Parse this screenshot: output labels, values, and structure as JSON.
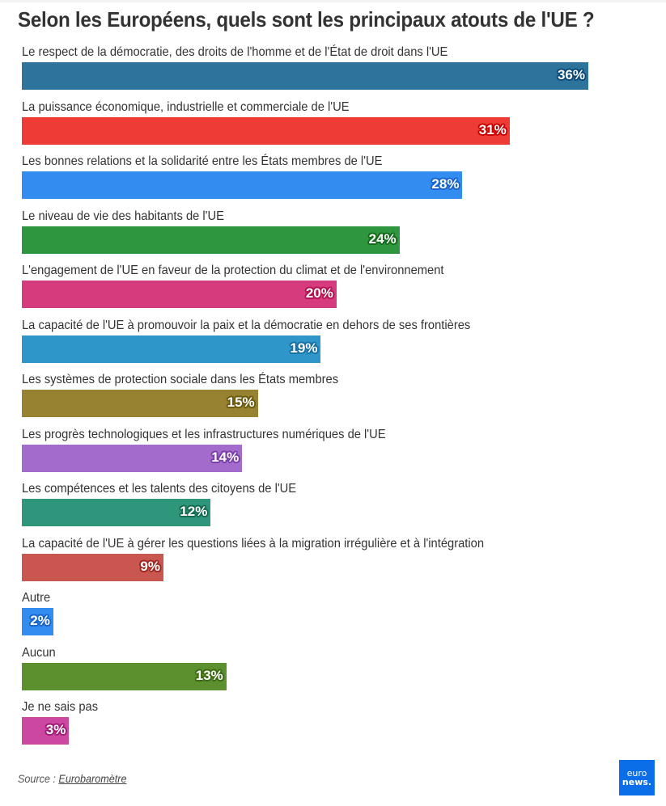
{
  "title": "Selon les Européens, quels sont les principaux atouts de l'UE ?",
  "source": {
    "prefix": "Source : ",
    "link_text": "Eurobaromètre"
  },
  "logo": {
    "line1": "euro",
    "line2": "news."
  },
  "chart_data": {
    "type": "bar",
    "orientation": "horizontal",
    "title": "Selon les Européens, quels sont les principaux atouts de l'UE ?",
    "xlabel": "",
    "ylabel": "",
    "unit": "%",
    "xlim": [
      0,
      36
    ],
    "grid": false,
    "legend": "none",
    "categories": [
      "Le respect de la démocratie, des droits de l'homme et de l'État de droit dans l'UE",
      "La puissance économique, industrielle et commerciale de l'UE",
      "Les bonnes relations et la solidarité entre les États membres de l'UE",
      "Le niveau de vie des habitants de l'UE",
      "L'engagement de l'UE en faveur de la protection du climat et de l'environnement",
      "La capacité de l'UE à promouvoir la paix et la démocratie en dehors de ses frontières",
      "Les systèmes de protection sociale dans les États membres",
      "Les progrès technologiques et les infrastructures numériques de l'UE",
      "Les compétences et les talents des citoyens de l'UE",
      "La capacité de l'UE à gérer les questions liées à la migration irrégulière et à l'intégration",
      "Autre",
      "Aucun",
      "Je ne sais pas"
    ],
    "values": [
      36,
      31,
      28,
      24,
      20,
      19,
      15,
      14,
      12,
      9,
      2,
      13,
      3
    ],
    "value_labels": [
      "36%",
      "31%",
      "28%",
      "24%",
      "20%",
      "19%",
      "15%",
      "14%",
      "12%",
      "9%",
      "2%",
      "13%",
      "3%"
    ],
    "colors": [
      "#2e739c",
      "#ef3b36",
      "#338cf0",
      "#2e963e",
      "#d63b7d",
      "#2e96c8",
      "#968230",
      "#a36ccc",
      "#2e967a",
      "#c95750",
      "#338cf0",
      "#5c8f2e",
      "#cc47a0"
    ],
    "label_outline_colors": [
      "#0b4a78",
      "#cc0000",
      "#1a66cc",
      "#136b1a",
      "#b3124f",
      "#1570a6",
      "#6b5a10",
      "#7a3fa8",
      "#136b50",
      "#a02a24",
      "#1a66cc",
      "#3d6b14",
      "#a01c78"
    ]
  }
}
